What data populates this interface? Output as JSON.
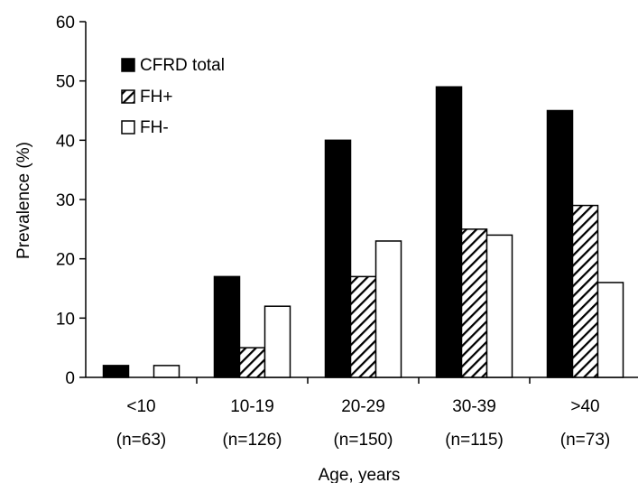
{
  "chart_data": {
    "type": "bar",
    "title": "",
    "xlabel": "Age, years",
    "ylabel": "Prevalence (%)",
    "ylim": [
      0,
      60
    ],
    "yticks": [
      0,
      10,
      20,
      30,
      40,
      50,
      60
    ],
    "grid": false,
    "legend_position": "top-left",
    "categories": [
      {
        "label": "<10",
        "sublabel": "(n=63)"
      },
      {
        "label": "10-19",
        "sublabel": "(n=126)"
      },
      {
        "label": "20-29",
        "sublabel": "(n=150)"
      },
      {
        "label": "30-39",
        "sublabel": "(n=115)"
      },
      {
        "label": ">40",
        "sublabel": "(n=73)"
      }
    ],
    "series": [
      {
        "name": "CFRD total",
        "style": "solid",
        "color": "#000000",
        "values": [
          2,
          17,
          40,
          49,
          45
        ]
      },
      {
        "name": "FH+",
        "style": "hatched",
        "color": "#000000",
        "values": [
          0,
          5,
          17,
          25,
          29
        ]
      },
      {
        "name": "FH-",
        "style": "open",
        "color": "#ffffff",
        "values": [
          2,
          12,
          23,
          24,
          16
        ]
      }
    ]
  }
}
